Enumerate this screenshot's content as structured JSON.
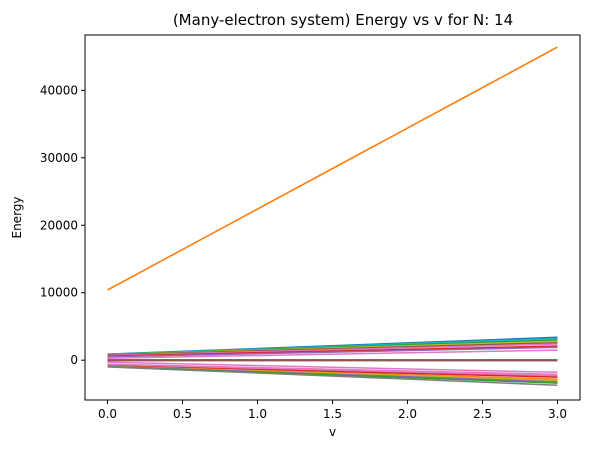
{
  "chart_data": {
    "type": "line",
    "title": "(Many-electron system) Energy vs v for N: 14",
    "xlabel": "v",
    "ylabel": "Energy",
    "xlim": [
      -0.15,
      3.15
    ],
    "ylim": [
      -5900,
      48200
    ],
    "xticks": [
      0.0,
      0.5,
      1.0,
      1.5,
      2.0,
      2.5,
      3.0
    ],
    "xtick_labels": [
      "0.0",
      "0.5",
      "1.0",
      "1.5",
      "2.0",
      "2.5",
      "3.0"
    ],
    "yticks": [
      0,
      10000,
      20000,
      30000,
      40000
    ],
    "ytick_labels": [
      "0",
      "10000",
      "20000",
      "30000",
      "40000"
    ],
    "grid": false,
    "legend": false,
    "x": [
      0,
      3
    ],
    "series": [
      {
        "values": [
          10400,
          46400
        ],
        "color": "#ff7f0e"
      },
      {
        "values": [
          900,
          3400
        ],
        "color": "#1f77b4"
      },
      {
        "values": [
          880,
          3200
        ],
        "color": "#17becf"
      },
      {
        "values": [
          850,
          3000
        ],
        "color": "#2ca02c"
      },
      {
        "values": [
          820,
          2800
        ],
        "color": "#bcbd22"
      },
      {
        "values": [
          780,
          2600
        ],
        "color": "#8c564b"
      },
      {
        "values": [
          700,
          2400
        ],
        "color": "#e377c2"
      },
      {
        "values": [
          600,
          2100
        ],
        "color": "#d62728"
      },
      {
        "values": [
          500,
          1900
        ],
        "color": "#9467bd"
      },
      {
        "values": [
          300,
          1500
        ],
        "color": "#e377c2"
      },
      {
        "values": [
          60,
          60
        ],
        "color": "#1f77b4"
      },
      {
        "values": [
          30,
          30
        ],
        "color": "#2ca02c"
      },
      {
        "values": [
          0,
          0
        ],
        "color": "#7f7f7f"
      },
      {
        "values": [
          -30,
          -30
        ],
        "color": "#9467bd"
      },
      {
        "values": [
          -60,
          -60
        ],
        "color": "#8c564b"
      },
      {
        "values": [
          -300,
          -1800
        ],
        "color": "#e377c2"
      },
      {
        "values": [
          -600,
          -2100
        ],
        "color": "#e377c2"
      },
      {
        "values": [
          -800,
          -2300
        ],
        "color": "#e377c2"
      },
      {
        "values": [
          -850,
          -2500
        ],
        "color": "#d62728"
      },
      {
        "values": [
          -900,
          -2800
        ],
        "color": "#ff7f0e"
      },
      {
        "values": [
          -920,
          -3000
        ],
        "color": "#bcbd22"
      },
      {
        "values": [
          -940,
          -3200
        ],
        "color": "#9467bd"
      },
      {
        "values": [
          -960,
          -3400
        ],
        "color": "#2ca02c"
      },
      {
        "values": [
          -1000,
          -3700
        ],
        "color": "#7f7f7f"
      }
    ]
  }
}
